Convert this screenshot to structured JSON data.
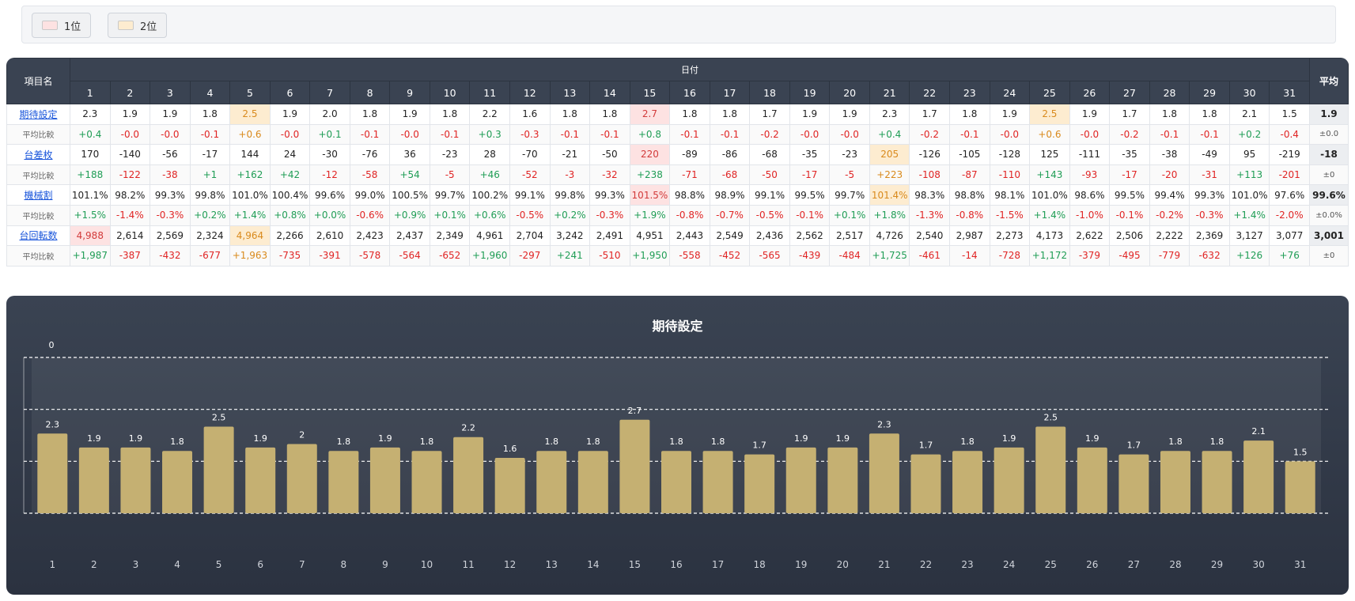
{
  "legend": [
    {
      "label": "1位",
      "color": "#fde2e2"
    },
    {
      "label": "2位",
      "color": "#fdecd0"
    }
  ],
  "table": {
    "header_name": "項目名",
    "header_date": "日付",
    "header_avg": "平均",
    "days": [
      "1",
      "2",
      "3",
      "4",
      "5",
      "6",
      "7",
      "8",
      "9",
      "10",
      "11",
      "12",
      "13",
      "14",
      "15",
      "16",
      "17",
      "18",
      "19",
      "20",
      "21",
      "22",
      "23",
      "24",
      "25",
      "26",
      "27",
      "28",
      "29",
      "30",
      "31"
    ],
    "rows": [
      {
        "name": "期待設定",
        "link": true,
        "values": [
          "2.3",
          "1.9",
          "1.9",
          "1.8",
          "2.5",
          "1.9",
          "2.0",
          "1.8",
          "1.9",
          "1.8",
          "2.2",
          "1.6",
          "1.8",
          "1.8",
          "2.7",
          "1.8",
          "1.8",
          "1.7",
          "1.9",
          "1.9",
          "2.3",
          "1.7",
          "1.8",
          "1.9",
          "2.5",
          "1.9",
          "1.7",
          "1.8",
          "1.8",
          "2.1",
          "1.5"
        ],
        "avg": "1.9",
        "rank1": [
          14
        ],
        "rank2": [
          4,
          24
        ]
      },
      {
        "name": "平均比較",
        "link": false,
        "values": [
          "+0.4",
          "-0.0",
          "-0.0",
          "-0.1",
          "+0.6",
          "-0.0",
          "+0.1",
          "-0.1",
          "-0.0",
          "-0.1",
          "+0.3",
          "-0.3",
          "-0.1",
          "-0.1",
          "+0.8",
          "-0.1",
          "-0.1",
          "-0.2",
          "-0.0",
          "-0.0",
          "+0.4",
          "-0.2",
          "-0.1",
          "-0.0",
          "+0.6",
          "-0.0",
          "-0.2",
          "-0.1",
          "-0.1",
          "+0.2",
          "-0.4"
        ],
        "avg": "±0.0",
        "rank1": [],
        "rank2": [
          4,
          24
        ]
      },
      {
        "name": "台差枚",
        "link": true,
        "values": [
          "170",
          "-140",
          "-56",
          "-17",
          "144",
          "24",
          "-30",
          "-76",
          "36",
          "-23",
          "28",
          "-70",
          "-21",
          "-50",
          "220",
          "-89",
          "-86",
          "-68",
          "-35",
          "-23",
          "205",
          "-126",
          "-105",
          "-128",
          "125",
          "-111",
          "-35",
          "-38",
          "-49",
          "95",
          "-219"
        ],
        "avg": "-18",
        "rank1": [
          14
        ],
        "rank2": [
          20
        ]
      },
      {
        "name": "平均比較",
        "link": false,
        "values": [
          "+188",
          "-122",
          "-38",
          "+1",
          "+162",
          "+42",
          "-12",
          "-58",
          "+54",
          "-5",
          "+46",
          "-52",
          "-3",
          "-32",
          "+238",
          "-71",
          "-68",
          "-50",
          "-17",
          "-5",
          "+223",
          "-108",
          "-87",
          "-110",
          "+143",
          "-93",
          "-17",
          "-20",
          "-31",
          "+113",
          "-201"
        ],
        "avg": "±0",
        "rank1": [],
        "rank2": [
          20
        ]
      },
      {
        "name": "機械割",
        "link": true,
        "values": [
          "101.1%",
          "98.2%",
          "99.3%",
          "99.8%",
          "101.0%",
          "100.4%",
          "99.6%",
          "99.0%",
          "100.5%",
          "99.7%",
          "100.2%",
          "99.1%",
          "99.8%",
          "99.3%",
          "101.5%",
          "98.8%",
          "98.9%",
          "99.1%",
          "99.5%",
          "99.7%",
          "101.4%",
          "98.3%",
          "98.8%",
          "98.1%",
          "101.0%",
          "98.6%",
          "99.5%",
          "99.4%",
          "99.3%",
          "101.0%",
          "97.6%"
        ],
        "avg": "99.6%",
        "rank1": [
          14
        ],
        "rank2": [
          20
        ]
      },
      {
        "name": "平均比較",
        "link": false,
        "values": [
          "+1.5%",
          "-1.4%",
          "-0.3%",
          "+0.2%",
          "+1.4%",
          "+0.8%",
          "+0.0%",
          "-0.6%",
          "+0.9%",
          "+0.1%",
          "+0.6%",
          "-0.5%",
          "+0.2%",
          "-0.3%",
          "+1.9%",
          "-0.8%",
          "-0.7%",
          "-0.5%",
          "-0.1%",
          "+0.1%",
          "+1.8%",
          "-1.3%",
          "-0.8%",
          "-1.5%",
          "+1.4%",
          "-1.0%",
          "-0.1%",
          "-0.2%",
          "-0.3%",
          "+1.4%",
          "-2.0%"
        ],
        "avg": "±0.0%",
        "rank1": [],
        "rank2": []
      },
      {
        "name": "台回転数",
        "link": true,
        "values": [
          "4,988",
          "2,614",
          "2,569",
          "2,324",
          "4,964",
          "2,266",
          "2,610",
          "2,423",
          "2,437",
          "2,349",
          "4,961",
          "2,704",
          "3,242",
          "2,491",
          "4,951",
          "2,443",
          "2,549",
          "2,436",
          "2,562",
          "2,517",
          "4,726",
          "2,540",
          "2,987",
          "2,273",
          "4,173",
          "2,622",
          "2,506",
          "2,222",
          "2,369",
          "3,127",
          "3,077"
        ],
        "avg": "3,001",
        "rank1": [
          0
        ],
        "rank2": [
          4
        ]
      },
      {
        "name": "平均比較",
        "link": false,
        "values": [
          "+1,987",
          "-387",
          "-432",
          "-677",
          "+1,963",
          "-735",
          "-391",
          "-578",
          "-564",
          "-652",
          "+1,960",
          "-297",
          "+241",
          "-510",
          "+1,950",
          "-558",
          "-452",
          "-565",
          "-439",
          "-484",
          "+1,725",
          "-461",
          "-14",
          "-728",
          "+1,172",
          "-379",
          "-495",
          "-779",
          "-632",
          "+126",
          "+76"
        ],
        "avg": "±0",
        "rank1": [
          0
        ],
        "rank2": [
          4
        ]
      }
    ]
  },
  "chart_panel": {
    "title": "期待設定",
    "overlap_label": "0"
  },
  "chart_data": {
    "type": "bar",
    "title": "期待設定",
    "categories": [
      "1",
      "2",
      "3",
      "4",
      "5",
      "6",
      "7",
      "8",
      "9",
      "10",
      "11",
      "12",
      "13",
      "14",
      "15",
      "16",
      "17",
      "18",
      "19",
      "20",
      "21",
      "22",
      "23",
      "24",
      "25",
      "26",
      "27",
      "28",
      "29",
      "30",
      "31"
    ],
    "values": [
      2.3,
      1.9,
      1.9,
      1.8,
      2.5,
      1.9,
      2.0,
      1.8,
      1.9,
      1.8,
      2.2,
      1.6,
      1.8,
      1.8,
      2.7,
      1.8,
      1.8,
      1.7,
      1.9,
      1.9,
      2.3,
      1.7,
      1.8,
      1.9,
      2.5,
      1.9,
      1.7,
      1.8,
      1.8,
      2.1,
      1.5
    ],
    "value_labels": [
      "2.3",
      "1.9",
      "1.9",
      "1.8",
      "2.5",
      "1.9",
      "2",
      "1.8",
      "1.9",
      "1.8",
      "2.2",
      "1.6",
      "1.8",
      "1.8",
      "2.7",
      "1.8",
      "1.8",
      "1.7",
      "1.9",
      "1.9",
      "2.3",
      "1.7",
      "1.8",
      "1.9",
      "2.5",
      "1.9",
      "1.7",
      "1.8",
      "1.8",
      "2.1",
      "1.5"
    ],
    "ylim": [
      0,
      4.5
    ],
    "dashed_levels": [
      0,
      1.5,
      3,
      4.5
    ],
    "bar_color": "#c5b072",
    "grid": true
  }
}
